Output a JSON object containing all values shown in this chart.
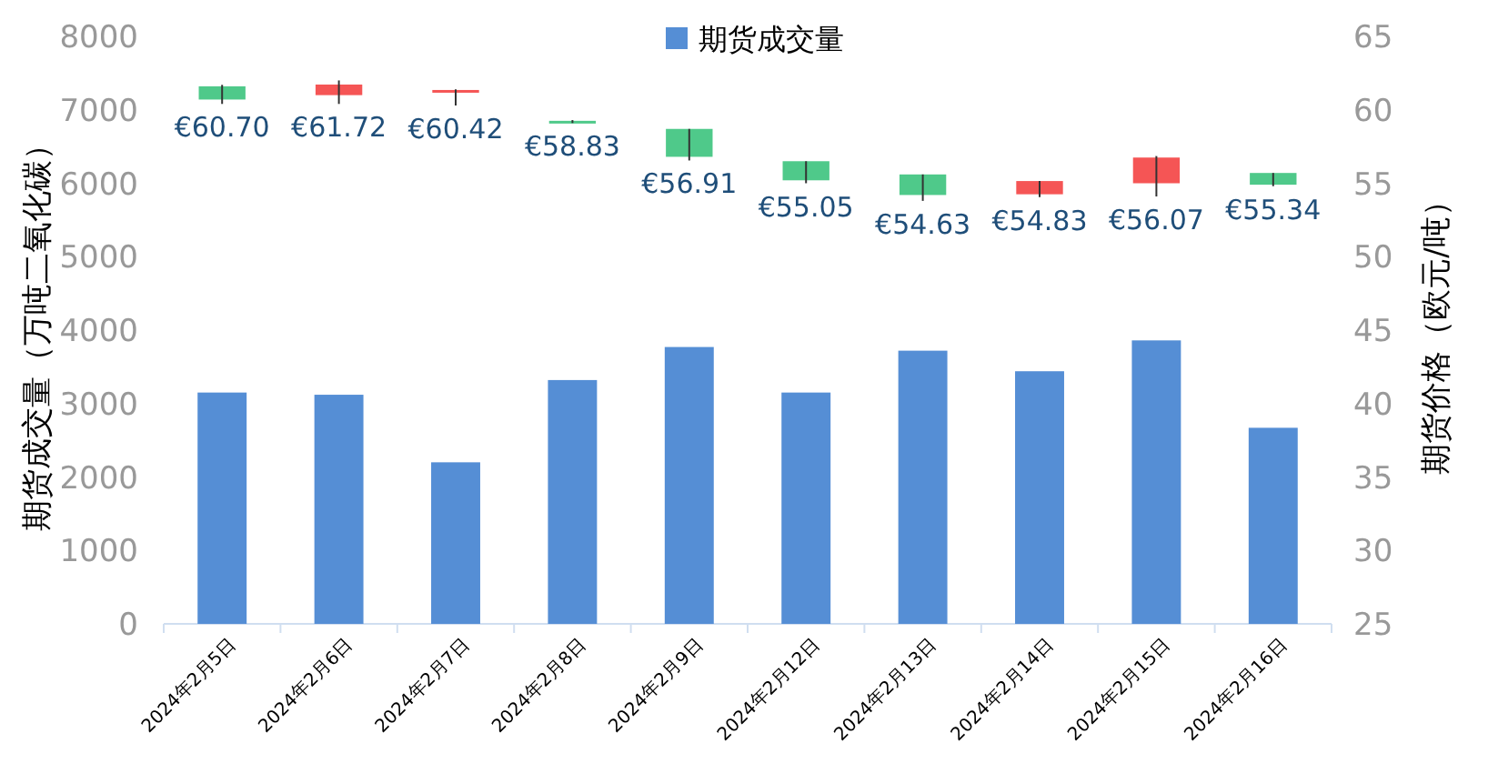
{
  "chart_data": {
    "type": "bar",
    "ylabel": "期货成交量（万吨二氧化碳）",
    "y2label": "期货价格（欧元/吨）",
    "categories": [
      "2024年2月5日",
      "2024年2月6日",
      "2024年2月7日",
      "2024年2月8日",
      "2024年2月9日",
      "2024年2月12日",
      "2024年2月13日",
      "2024年2月14日",
      "2024年2月15日",
      "2024年2月16日"
    ],
    "series": [
      {
        "name": "期货成交量",
        "color": "#558ed5",
        "values": [
          3150,
          3120,
          2200,
          3320,
          3770,
          3150,
          3720,
          3440,
          3860,
          2670
        ]
      },
      {
        "type": "candlestick",
        "axis": "y2",
        "colors": [
          "#4fc98a",
          "#f55555",
          "#f55555",
          "#4fc98a",
          "#4fc98a",
          "#4fc98a",
          "#4fc98a",
          "#f55555",
          "#f55555",
          "#4fc98a"
        ],
        "ohlc": [
          [
            61.6,
            61.7,
            60.4,
            60.7
          ],
          [
            61.0,
            62.0,
            60.4,
            61.72
          ],
          [
            61.3,
            61.4,
            60.3,
            61.35
          ],
          [
            59.25,
            59.3,
            59.1,
            59.15
          ],
          [
            58.7,
            58.7,
            56.55,
            56.8
          ],
          [
            56.5,
            56.5,
            55.0,
            55.2
          ],
          [
            55.6,
            55.6,
            53.8,
            54.2
          ],
          [
            54.25,
            55.15,
            54.05,
            55.15
          ],
          [
            55.0,
            56.85,
            54.1,
            56.75
          ],
          [
            55.7,
            55.7,
            54.8,
            54.9
          ]
        ],
        "value_labels": [
          "€60.70",
          "€61.72",
          "€60.42",
          "€58.83",
          "€56.91",
          "€55.05",
          "€54.63",
          "€54.83",
          "€56.07",
          "€55.34"
        ]
      }
    ],
    "ylim": [
      0,
      8000
    ],
    "yticks": [
      0,
      1000,
      2000,
      3000,
      4000,
      5000,
      6000,
      7000,
      8000
    ],
    "y2lim": [
      25,
      65
    ],
    "y2ticks": [
      25,
      30,
      35,
      40,
      45,
      50,
      55,
      60,
      65
    ],
    "legend": "top",
    "grid": false
  }
}
